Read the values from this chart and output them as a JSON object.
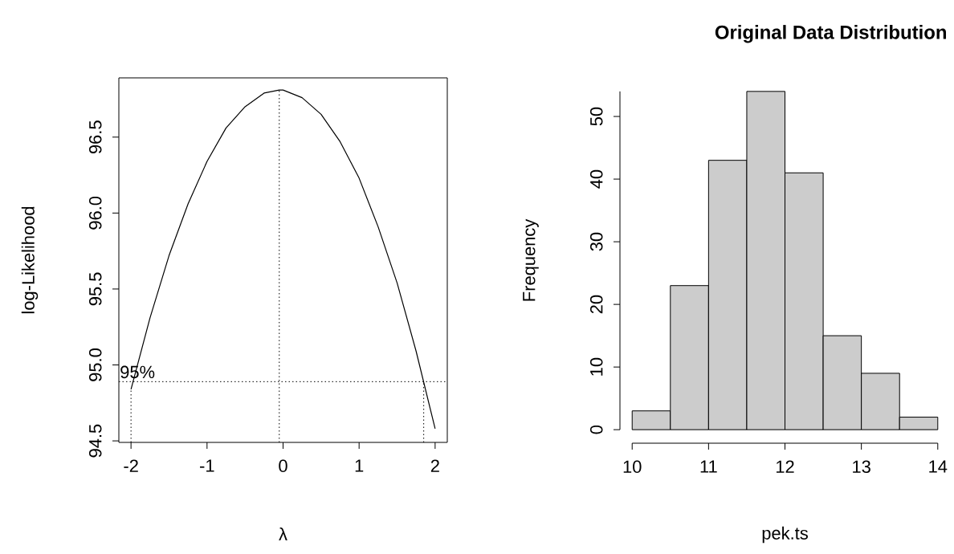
{
  "chart_data": [
    {
      "type": "line",
      "xlabel": "λ",
      "ylabel": "log-Likelihood",
      "color": "#000000",
      "x": [
        -2,
        -1.75,
        -1.5,
        -1.25,
        -1,
        -0.75,
        -0.5,
        -0.25,
        -0.05,
        0,
        0.25,
        0.5,
        0.75,
        1,
        1.25,
        1.5,
        1.75,
        2
      ],
      "values": [
        94.84,
        95.31,
        95.72,
        96.06,
        96.34,
        96.56,
        96.7,
        96.79,
        96.81,
        96.81,
        96.76,
        96.65,
        96.47,
        96.23,
        95.91,
        95.54,
        95.09,
        94.58
      ],
      "xlim": [
        -2.16,
        2.16
      ],
      "ylim": [
        94.49,
        96.89
      ],
      "xticks": [
        -2,
        -1,
        0,
        1,
        2
      ],
      "yticks": [
        94.5,
        {
          "value": 95,
          "label": "95.0"
        },
        95.5,
        {
          "value": 96,
          "label": "96.0"
        },
        96.5
      ],
      "ref_lines": [
        {
          "axis": "x",
          "value": -0.05,
          "line_style": "dotted"
        },
        {
          "axis": "y",
          "value": 94.89,
          "label": "95%",
          "line_style": "dotted"
        },
        {
          "axis": "x",
          "value": -2.0,
          "line_style": "dotted"
        },
        {
          "axis": "x",
          "value": 1.85,
          "line_style": "dotted"
        }
      ]
    },
    {
      "type": "histogram",
      "title": "Original Data Distribution",
      "xlabel": "pek.ts",
      "ylabel": "Frequency",
      "color": "#cccccc",
      "bins": [
        10,
        10.5,
        11,
        11.5,
        12,
        12.5,
        13,
        13.5,
        14
      ],
      "values": [
        3,
        23,
        43,
        54,
        41,
        15,
        9,
        2
      ],
      "xlim": [
        10,
        14
      ],
      "ylim": [
        0,
        54
      ],
      "xticks": [
        10,
        11,
        12,
        13,
        14
      ],
      "yticks": [
        0,
        10,
        20,
        30,
        40,
        50
      ]
    }
  ]
}
